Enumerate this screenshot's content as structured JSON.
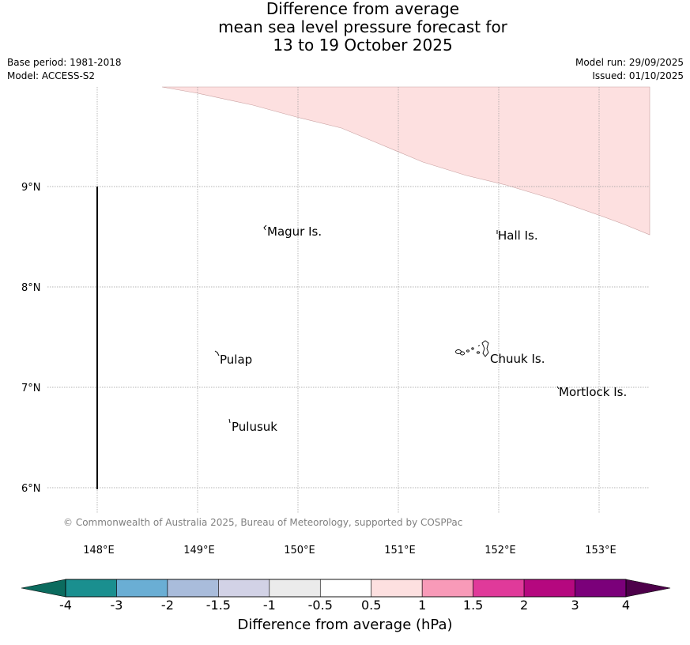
{
  "title": {
    "line1": "Difference from average",
    "line2": "mean sea level pressure forecast for",
    "line3": "13 to 19 October 2025"
  },
  "meta": {
    "base_period": "Base period: 1981-2018",
    "model": "Model: ACCESS-S2",
    "model_run": "Model run: 29/09/2025",
    "issued": "Issued: 01/10/2025"
  },
  "map": {
    "lat_labels": [
      "9°N",
      "8°N",
      "7°N",
      "6°N"
    ],
    "lon_labels": [
      "148°E",
      "149°E",
      "150°E",
      "151°E",
      "152°E",
      "153°E"
    ],
    "places": {
      "magur": "Magur Is.",
      "hall": "Hall Is.",
      "pulap": "Pulap",
      "chuuk": "Chuuk Is.",
      "mortlock": "Mortlock Is.",
      "pulusuk": "Pulusuk"
    },
    "anomaly_region_class": "0.5 to 1 hPa",
    "copyright": "© Commonwealth of Australia 2025, Bureau of Meteorology, supported by COSPPac"
  },
  "colorbar": {
    "labels": [
      "-4",
      "-3",
      "-2",
      "-1.5",
      "-1",
      "-0.5",
      "0.5",
      "1",
      "1.5",
      "2",
      "3",
      "4"
    ],
    "colors": [
      "#1a8f8f",
      "#6aaed4",
      "#a9bcdb",
      "#d2d2e6",
      "#ebebeb",
      "#ffffff",
      "#fde0e0",
      "#f89ab8",
      "#e03a9a",
      "#b5087f",
      "#7b007a"
    ],
    "under_color": "#0b6b5e",
    "over_color": "#4d004a",
    "title": "Difference from average (hPa)"
  }
}
